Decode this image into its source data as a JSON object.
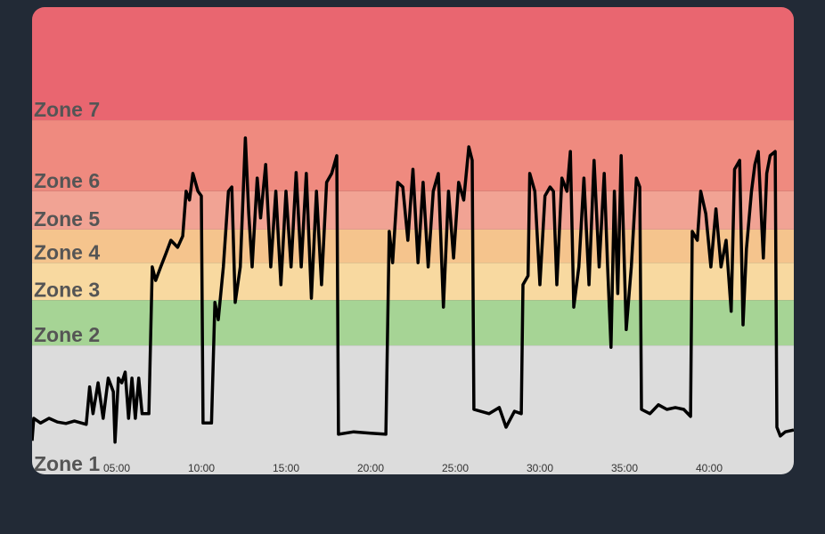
{
  "chart_data": {
    "type": "line",
    "x": [
      0,
      0.1,
      0.5,
      1.0,
      1.5,
      2.0,
      2.5,
      3.2,
      3.4,
      3.6,
      3.9,
      4.2,
      4.5,
      4.8,
      4.9,
      5.1,
      5.3,
      5.5,
      5.7,
      5.9,
      6.1,
      6.3,
      6.5,
      6.9,
      7.1,
      7.3,
      7.6,
      7.9,
      8.2,
      8.6,
      8.9,
      9.1,
      9.3,
      9.5,
      9.8,
      10.0,
      10.1,
      10.6,
      10.8,
      11.0,
      11.3,
      11.6,
      11.8,
      12.0,
      12.3,
      12.6,
      12.8,
      13.0,
      13.3,
      13.5,
      13.8,
      14.1,
      14.4,
      14.7,
      15.0,
      15.3,
      15.6,
      15.9,
      16.2,
      16.5,
      16.8,
      17.1,
      17.4,
      17.7,
      18.0,
      18.1,
      19.0,
      20.0,
      20.9,
      21.1,
      21.3,
      21.6,
      21.9,
      22.2,
      22.5,
      22.8,
      23.1,
      23.4,
      23.7,
      24.0,
      24.3,
      24.6,
      24.9,
      25.2,
      25.5,
      25.8,
      26.0,
      26.1,
      27.0,
      27.6,
      28.0,
      28.5,
      28.9,
      29.0,
      29.3,
      29.4,
      29.7,
      30.0,
      30.3,
      30.6,
      30.8,
      31.0,
      31.3,
      31.6,
      31.8,
      32.0,
      32.3,
      32.6,
      32.9,
      33.2,
      33.5,
      33.8,
      34.0,
      34.2,
      34.4,
      34.6,
      34.8,
      35.1,
      35.4,
      35.7,
      35.9,
      36.0,
      36.5,
      37.0,
      37.5,
      38.0,
      38.5,
      38.9,
      39.0,
      39.3,
      39.5,
      39.8,
      40.1,
      40.4,
      40.7,
      41.0,
      41.3,
      41.5,
      41.8,
      42.0,
      42.2,
      42.5,
      42.7,
      42.9,
      43.2,
      43.4,
      43.6,
      43.9,
      44.0,
      44.2,
      44.5,
      45.0
    ],
    "series": [
      {
        "color": "#000000",
        "values": [
          7.2,
          12.0,
          11.0,
          12.0,
          11.2,
          10.9,
          11.4,
          10.7,
          18.7,
          13.0,
          19.6,
          12.0,
          20.6,
          17.7,
          6.9,
          20.6,
          19.6,
          21.9,
          12.0,
          20.6,
          12.0,
          20.6,
          13.0,
          13.0,
          44.4,
          41.5,
          44.4,
          47.2,
          50.1,
          48.6,
          51.0,
          60.6,
          58.7,
          64.4,
          60.6,
          59.6,
          11.0,
          11.0,
          36.8,
          33.1,
          44.4,
          60.6,
          61.5,
          36.8,
          44.4,
          72.0,
          55.8,
          44.4,
          63.4,
          54.9,
          66.3,
          44.4,
          60.6,
          40.6,
          60.6,
          44.4,
          64.6,
          44.4,
          64.4,
          37.7,
          60.6,
          40.6,
          62.5,
          64.4,
          68.2,
          8.6,
          9.1,
          8.8,
          8.6,
          52.0,
          45.3,
          62.5,
          61.5,
          50.1,
          65.3,
          45.3,
          62.5,
          44.4,
          60.6,
          64.4,
          35.8,
          60.6,
          46.3,
          62.5,
          58.7,
          70.1,
          67.2,
          13.9,
          13.0,
          14.3,
          10.1,
          13.5,
          13.0,
          40.6,
          42.5,
          64.4,
          60.6,
          40.6,
          59.6,
          61.5,
          60.6,
          40.6,
          63.4,
          60.6,
          69.1,
          35.8,
          44.4,
          63.4,
          40.6,
          67.2,
          44.4,
          64.4,
          44.4,
          27.2,
          60.6,
          38.7,
          68.2,
          31.0,
          44.4,
          63.4,
          61.5,
          13.9,
          13.0,
          14.9,
          13.9,
          14.3,
          13.9,
          12.4,
          52.0,
          50.1,
          60.6,
          55.8,
          44.4,
          56.8,
          44.4,
          50.1,
          34.9,
          65.3,
          67.2,
          32.0,
          48.2,
          60.6,
          66.3,
          69.1,
          46.3,
          64.4,
          68.2,
          69.1,
          10.1,
          8.2,
          9.1,
          9.5
        ]
      }
    ],
    "xlim": [
      0,
      45
    ],
    "xticks": [
      {
        "value": 5,
        "label": "05:00"
      },
      {
        "value": 10,
        "label": "10:00"
      },
      {
        "value": 15,
        "label": "15:00"
      },
      {
        "value": 20,
        "label": "20:00"
      },
      {
        "value": 25,
        "label": "25:00"
      },
      {
        "value": 30,
        "label": "30:00"
      },
      {
        "value": 35,
        "label": "35:00"
      },
      {
        "value": 40,
        "label": "40:00"
      }
    ],
    "ylim": [
      0,
      100
    ],
    "zones": [
      {
        "label": "Zone 1",
        "from": 0,
        "to": 27.6,
        "color": "#dcdcdc"
      },
      {
        "label": "Zone 2",
        "from": 27.6,
        "to": 37.3,
        "color": "#a6d495"
      },
      {
        "label": "Zone 3",
        "from": 37.3,
        "to": 45.3,
        "color": "#f8d9a0"
      },
      {
        "label": "Zone 4",
        "from": 45.3,
        "to": 52.4,
        "color": "#f5c48d"
      },
      {
        "label": "Zone 5",
        "from": 52.4,
        "to": 60.6,
        "color": "#f1a394"
      },
      {
        "label": "Zone 6",
        "from": 60.6,
        "to": 75.8,
        "color": "#ef8a7f"
      },
      {
        "label": "Zone 7",
        "from": 75.8,
        "to": 100,
        "color": "#e96670"
      }
    ]
  }
}
